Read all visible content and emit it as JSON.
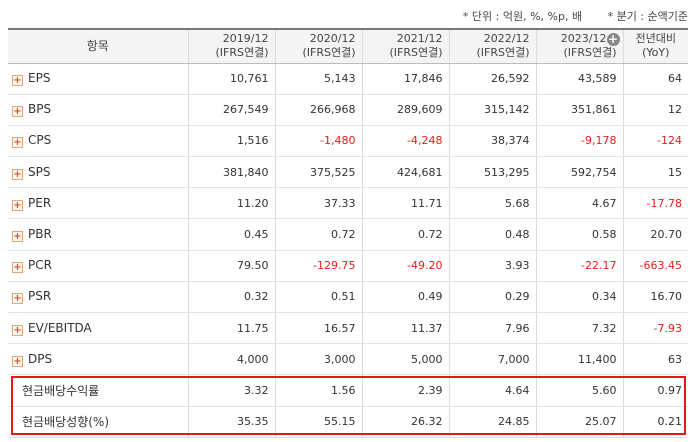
{
  "notes": {
    "unit": "* 단위 : 억원, %, %p, 배",
    "period": "* 분기 : 순액기준"
  },
  "header": {
    "item_label": "항목",
    "periods": [
      {
        "year": "2019/12",
        "basis": "(IFRS연결)"
      },
      {
        "year": "2020/12",
        "basis": "(IFRS연결)"
      },
      {
        "year": "2021/12",
        "basis": "(IFRS연결)"
      },
      {
        "year": "2022/12",
        "basis": "(IFRS연결)"
      },
      {
        "year": "2023/12",
        "basis": "(IFRS연결)"
      }
    ],
    "yoy_top": "전년대비",
    "yoy_sub": "(YoY)"
  },
  "rows": [
    {
      "name": "EPS",
      "values": [
        "10,761",
        "5,143",
        "17,846",
        "26,592",
        "43,589",
        "64"
      ]
    },
    {
      "name": "BPS",
      "values": [
        "267,549",
        "266,968",
        "289,609",
        "315,142",
        "351,861",
        "12"
      ]
    },
    {
      "name": "CPS",
      "values": [
        "1,516",
        "-1,480",
        "-4,248",
        "38,374",
        "-9,178",
        "-124"
      ]
    },
    {
      "name": "SPS",
      "values": [
        "381,840",
        "375,525",
        "424,681",
        "513,295",
        "592,754",
        "15"
      ]
    },
    {
      "name": "PER",
      "values": [
        "11.20",
        "37.33",
        "11.71",
        "5.68",
        "4.67",
        "-17.78"
      ]
    },
    {
      "name": "PBR",
      "values": [
        "0.45",
        "0.72",
        "0.72",
        "0.48",
        "0.58",
        "20.70"
      ]
    },
    {
      "name": "PCR",
      "values": [
        "79.50",
        "-129.75",
        "-49.20",
        "3.93",
        "-22.17",
        "-663.45"
      ]
    },
    {
      "name": "PSR",
      "values": [
        "0.32",
        "0.51",
        "0.49",
        "0.29",
        "0.34",
        "16.70"
      ]
    },
    {
      "name": "EV/EBITDA",
      "values": [
        "11.75",
        "16.57",
        "11.37",
        "7.96",
        "7.32",
        "-7.93"
      ]
    },
    {
      "name": "DPS",
      "values": [
        "4,000",
        "3,000",
        "5,000",
        "7,000",
        "11,400",
        "63"
      ]
    },
    {
      "name": "현금배당수익률",
      "values": [
        "3.32",
        "1.56",
        "2.39",
        "4.64",
        "5.60",
        "0.97"
      ]
    },
    {
      "name": "현금배당성향(%)",
      "values": [
        "35.35",
        "55.15",
        "26.32",
        "24.85",
        "25.07",
        "0.21"
      ]
    }
  ],
  "icons": {
    "expand": "plus-square-icon",
    "add_column": "plus-circle-icon"
  },
  "colors": {
    "negative": "#e0211b",
    "highlight": "#e8161c",
    "header_bg": "#f4f4f4"
  }
}
